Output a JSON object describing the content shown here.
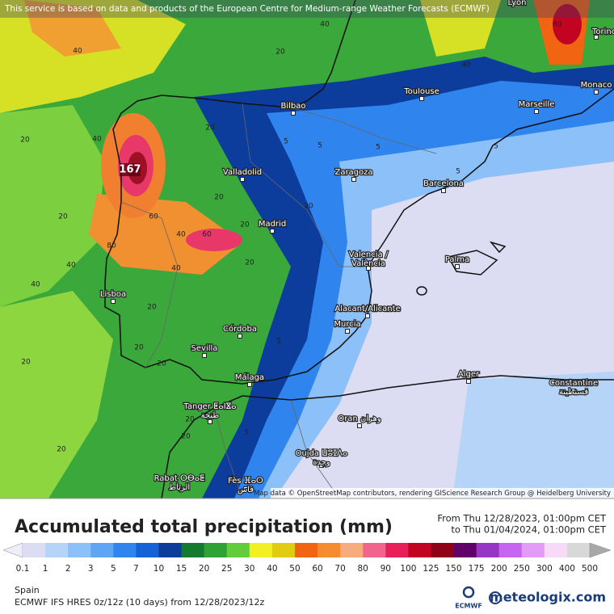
{
  "header": {
    "notice": "This service is based on data and products of the European Centre for Medium-range Weather Forecasts (ECMWF)"
  },
  "map": {
    "cities": [
      {
        "lines": [
          "Lyon"
        ]
      },
      {
        "lines": [
          "Torino"
        ]
      },
      {
        "lines": [
          "Monaco"
        ]
      },
      {
        "lines": [
          "Toulouse"
        ]
      },
      {
        "lines": [
          "Marseille"
        ]
      },
      {
        "lines": [
          "Bilbao"
        ]
      },
      {
        "lines": [
          "Zaragoza"
        ]
      },
      {
        "lines": [
          "Barcelona"
        ]
      },
      {
        "lines": [
          "Valladolid"
        ]
      },
      {
        "lines": [
          "Madrid"
        ]
      },
      {
        "lines": [
          "Valencia /",
          "València"
        ]
      },
      {
        "lines": [
          "Palma"
        ]
      },
      {
        "lines": [
          "Lisboa"
        ]
      },
      {
        "lines": [
          "Alacant/Alicante"
        ]
      },
      {
        "lines": [
          "Murcia"
        ]
      },
      {
        "lines": [
          "Córdoba"
        ]
      },
      {
        "lines": [
          "Sevilla"
        ]
      },
      {
        "lines": [
          "Málaga"
        ]
      },
      {
        "lines": [
          "Alger"
        ]
      },
      {
        "lines": [
          "Constantine",
          "قسنطينة"
        ]
      },
      {
        "lines": [
          "Tanger ⵟⴰⵏⴵⴰ",
          "طنجة"
        ]
      },
      {
        "lines": [
          "Oran وهران"
        ]
      },
      {
        "lines": [
          "Oujda ⵡⵓⵊⴷⴰ",
          "وجدة"
        ]
      },
      {
        "lines": [
          "Rabat ⵔⴱⴰⵟ",
          "الرباط"
        ]
      },
      {
        "lines": [
          "Fès ⴼⴰⵙ",
          "فاس"
        ]
      }
    ],
    "contour_labels": [
      "40",
      "40",
      "20",
      "40",
      "60",
      "20",
      "40",
      "20",
      "5",
      "5",
      "5",
      "5",
      "5",
      "20",
      "60",
      "20",
      "20",
      "20",
      "40",
      "60",
      "80",
      "40",
      "20",
      "40",
      "40",
      "20",
      "20",
      "5",
      "20",
      "20",
      "20",
      "20",
      "5",
      "20"
    ],
    "max_label": "167",
    "attribution": "Map data © OpenStreetMap contributors, rendering GIScience Research Group @ Heidelberg University"
  },
  "legend": {
    "title": "Accumulated total precipitation (mm)",
    "period_from": "From Thu 12/28/2023, 01:00pm CET",
    "period_to": "to Thu 01/04/2024, 01:00pm CET",
    "labels": [
      0.1,
      1,
      2,
      3,
      5,
      7,
      10,
      15,
      20,
      25,
      30,
      40,
      50,
      60,
      70,
      80,
      90,
      100,
      125,
      150,
      175,
      200,
      250,
      300,
      400,
      500
    ],
    "colors": [
      "#eeeef8",
      "#dcdcf2",
      "#b6d4f8",
      "#8cc0f8",
      "#5ea6f4",
      "#2f84ee",
      "#1462d6",
      "#0c3c9c",
      "#147a2e",
      "#2ea234",
      "#62cc3a",
      "#f2f020",
      "#e0cc10",
      "#f06412",
      "#f58c30",
      "#f6ac7c",
      "#f0648e",
      "#e8205a",
      "#c20422",
      "#900018",
      "#62006a",
      "#9636c4",
      "#c666f0",
      "#e29cf8",
      "#f6daf8",
      "#d8d8d8",
      "#a8a8a8"
    ]
  },
  "footer": {
    "region": "Spain",
    "model": "ECMWF IFS HRES 0z/12z (10 days)  from  12/28/2023/12z",
    "ecmwf_logo": "ECMWF",
    "brand": "meteologix.com"
  }
}
